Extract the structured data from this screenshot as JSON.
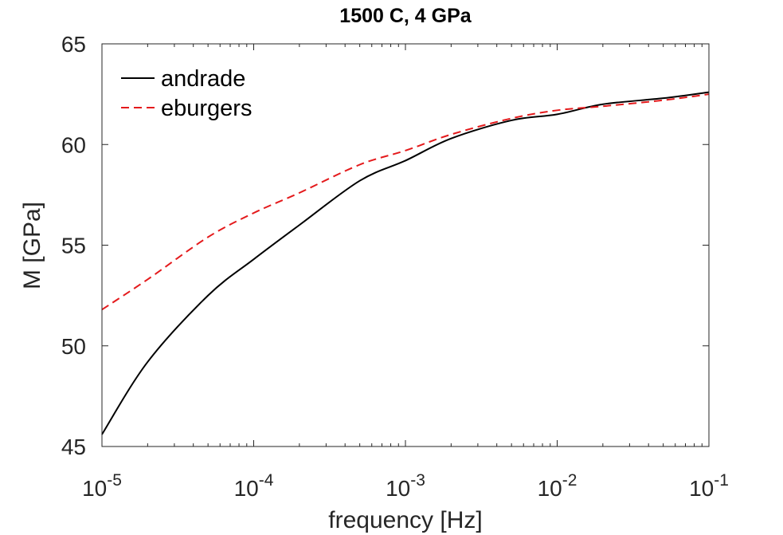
{
  "chart_data": {
    "type": "line",
    "title": "1500 C, 4 GPa",
    "xlabel": "frequency [Hz]",
    "ylabel": "M [GPa]",
    "x_scale": "log",
    "xlim": [
      1e-05,
      0.1
    ],
    "ylim": [
      45,
      65
    ],
    "x_ticks": [
      {
        "value": 1e-05,
        "base": "10",
        "exp": "-5"
      },
      {
        "value": 0.0001,
        "base": "10",
        "exp": "-4"
      },
      {
        "value": 0.001,
        "base": "10",
        "exp": "-3"
      },
      {
        "value": 0.01,
        "base": "10",
        "exp": "-2"
      },
      {
        "value": 0.1,
        "base": "10",
        "exp": "-1"
      }
    ],
    "y_ticks": [
      "45",
      "50",
      "55",
      "60",
      "65"
    ],
    "grid": false,
    "legend_position": "top-left",
    "series": [
      {
        "name": "andrade",
        "color": "#000000",
        "dash": "solid",
        "x": [
          1e-05,
          2e-05,
          5e-05,
          0.0001,
          0.0002,
          0.0005,
          0.001,
          0.002,
          0.005,
          0.01,
          0.02,
          0.05,
          0.1
        ],
        "y": [
          45.6,
          49.2,
          52.5,
          54.3,
          56.0,
          58.2,
          59.2,
          60.3,
          61.2,
          61.5,
          62.0,
          62.3,
          62.6
        ]
      },
      {
        "name": "eburgers",
        "color": "#e41a1c",
        "dash": "dashed",
        "x": [
          1e-05,
          2e-05,
          5e-05,
          0.0001,
          0.0002,
          0.0005,
          0.001,
          0.002,
          0.005,
          0.01,
          0.02,
          0.05,
          0.1
        ],
        "y": [
          51.8,
          53.3,
          55.4,
          56.6,
          57.6,
          59.0,
          59.7,
          60.5,
          61.3,
          61.7,
          61.9,
          62.2,
          62.5
        ]
      }
    ]
  }
}
